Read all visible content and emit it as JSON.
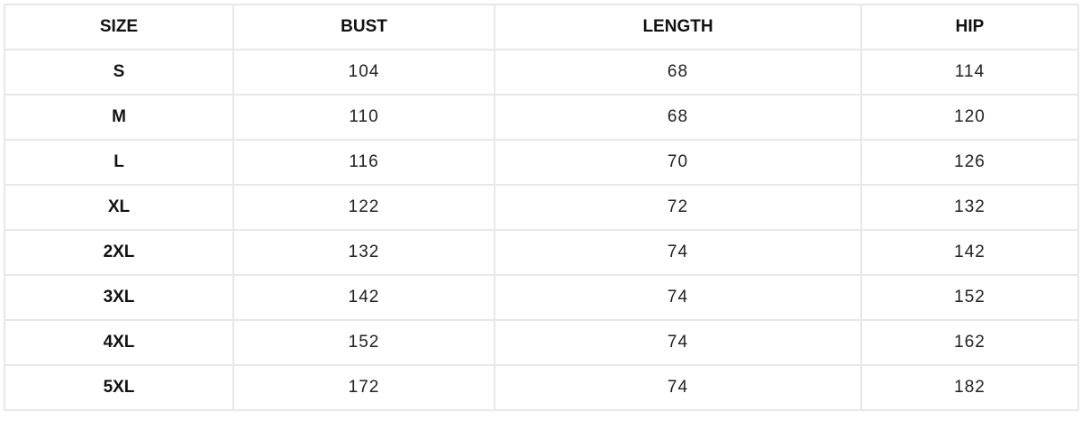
{
  "table": {
    "headers": [
      "SIZE",
      "BUST",
      "LENGTH",
      "HIP"
    ],
    "rows": [
      [
        "S",
        "104",
        "68",
        "114"
      ],
      [
        "M",
        "110",
        "68",
        "120"
      ],
      [
        "L",
        "116",
        "70",
        "126"
      ],
      [
        "XL",
        "122",
        "72",
        "132"
      ],
      [
        "2XL",
        "132",
        "74",
        "142"
      ],
      [
        "3XL",
        "142",
        "74",
        "152"
      ],
      [
        "4XL",
        "152",
        "74",
        "162"
      ],
      [
        "5XL",
        "172",
        "74",
        "182"
      ]
    ]
  }
}
